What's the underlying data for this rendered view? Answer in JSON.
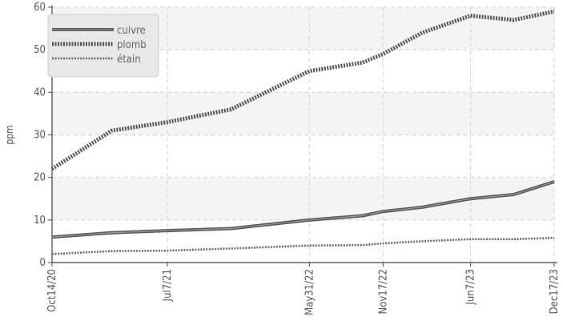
{
  "chart_data": {
    "type": "line",
    "x": [
      "2020-10-14",
      "2021-03-01",
      "2021-07-07",
      "2021-12-01",
      "2022-05-31",
      "2022-10-01",
      "2022-11-17",
      "2023-02-15",
      "2023-06-07",
      "2023-09-15",
      "2023-12-17"
    ],
    "x_tick_labels": [
      "Oct14/20",
      "Jul7/21",
      "May31/22",
      "Nov17/22",
      "Jun7/23",
      "Dec17/23"
    ],
    "x_tick_dates": [
      "2020-10-14",
      "2021-07-07",
      "2022-05-31",
      "2022-11-17",
      "2023-06-07",
      "2023-12-17"
    ],
    "series": [
      {
        "name": "cuivre",
        "values": [
          6,
          7,
          7.5,
          8,
          10,
          11,
          12,
          13,
          15,
          16,
          19
        ],
        "style": "solid",
        "color": "#555555"
      },
      {
        "name": "plomb",
        "values": [
          22,
          31,
          33,
          36,
          45,
          47,
          49,
          54,
          58,
          57,
          59
        ],
        "style": "dotted-thick",
        "color": "#555555"
      },
      {
        "name": "étain",
        "values": [
          2,
          2.7,
          2.8,
          3.3,
          4,
          4.1,
          4.5,
          5,
          5.5,
          5.5,
          5.8
        ],
        "style": "dotted-thin",
        "color": "#666666"
      }
    ],
    "ylabel": "ppm",
    "xlabel": "",
    "title": "",
    "ylim": [
      0,
      60
    ],
    "y_ticks": [
      0,
      10,
      20,
      30,
      40,
      50,
      60
    ],
    "grid": true,
    "legend_position": "top-left"
  }
}
